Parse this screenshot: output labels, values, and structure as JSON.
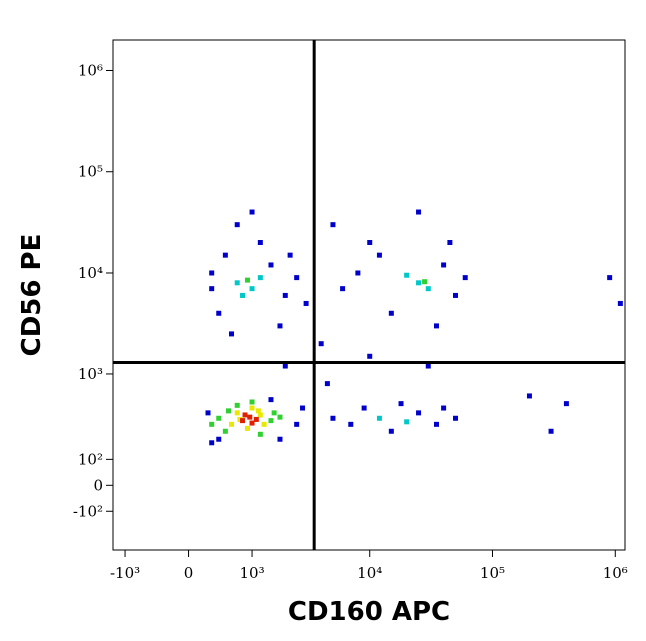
{
  "chart_data": {
    "type": "scatter",
    "xscale": "biexponential",
    "yscale": "biexponential",
    "x_label": "CD160 APC",
    "y_label": "CD56 PE",
    "xlim": [
      -1300,
      1200000
    ],
    "ylim": [
      -330,
      2000000
    ],
    "xticks": [
      {
        "value": -1000,
        "label": "-10³"
      },
      0,
      {
        "value": 1000,
        "label": "10³"
      },
      {
        "value": 10000,
        "label": "10⁴"
      },
      {
        "value": 100000,
        "label": "10⁵"
      },
      {
        "value": 1000000,
        "label": "10⁶"
      }
    ],
    "yticks": [
      {
        "value": -100,
        "label": "-10²"
      },
      0,
      {
        "value": 100,
        "label": "10²"
      },
      {
        "value": 1000,
        "label": "10³"
      },
      {
        "value": 10000,
        "label": "10⁴"
      },
      {
        "value": 100000,
        "label": "10⁵"
      },
      {
        "value": 1000000,
        "label": "10⁶"
      }
    ],
    "gates": {
      "x": 3500,
      "y": 1300
    },
    "series": [
      {
        "color": "#0000cc",
        "x": [
          300,
          500,
          1500,
          2000,
          400,
          1800,
          600,
          1200,
          2500,
          300,
          1000,
          700,
          2200,
          8000,
          12000,
          40000,
          50000,
          15000,
          35000,
          6000,
          60000,
          10000,
          25000,
          5000,
          45000,
          4000,
          3000,
          4500,
          2000,
          10000,
          30000,
          7000,
          9000,
          15000,
          25000,
          35000,
          50000,
          5000,
          40000,
          18000,
          250,
          2500,
          1800,
          400,
          1500,
          2800,
          300,
          200000,
          400000,
          900000,
          1100000,
          300000
        ],
        "y": [
          10000,
          15000,
          12000,
          6000,
          4000,
          3000,
          2500,
          20000,
          9000,
          7000,
          40000,
          30000,
          15000,
          10000,
          15000,
          12000,
          6000,
          4000,
          3000,
          7000,
          9000,
          20000,
          40000,
          30000,
          20000,
          2000,
          5000,
          800,
          1200,
          1500,
          1200,
          300,
          450,
          250,
          400,
          300,
          350,
          350,
          450,
          500,
          400,
          300,
          200,
          200,
          550,
          450,
          180,
          600,
          500,
          9000,
          5000,
          250
        ]
      },
      {
        "color": "#00c8c8",
        "x": [
          700,
          1000,
          1200,
          800,
          25000,
          30000,
          20000,
          12000,
          20000
        ],
        "y": [
          8000,
          7000,
          9000,
          6000,
          8000,
          7000,
          9500,
          350,
          320
        ]
      },
      {
        "color": "#30d030",
        "x": [
          400,
          500,
          1500,
          1600,
          700,
          1200,
          300,
          1800,
          1000,
          550,
          900,
          28000
        ],
        "y": [
          350,
          250,
          330,
          400,
          480,
          230,
          300,
          360,
          520,
          420,
          8500,
          8200
        ]
      },
      {
        "color": "#e8e800",
        "x": [
          600,
          700,
          1200,
          1300,
          900,
          1000,
          750,
          1150
        ],
        "y": [
          300,
          400,
          380,
          300,
          270,
          450,
          340,
          420
        ]
      },
      {
        "color": "#e02000",
        "x": [
          800,
          950,
          1000,
          850,
          1100
        ],
        "y": [
          330,
          360,
          310,
          380,
          340
        ]
      }
    ]
  }
}
